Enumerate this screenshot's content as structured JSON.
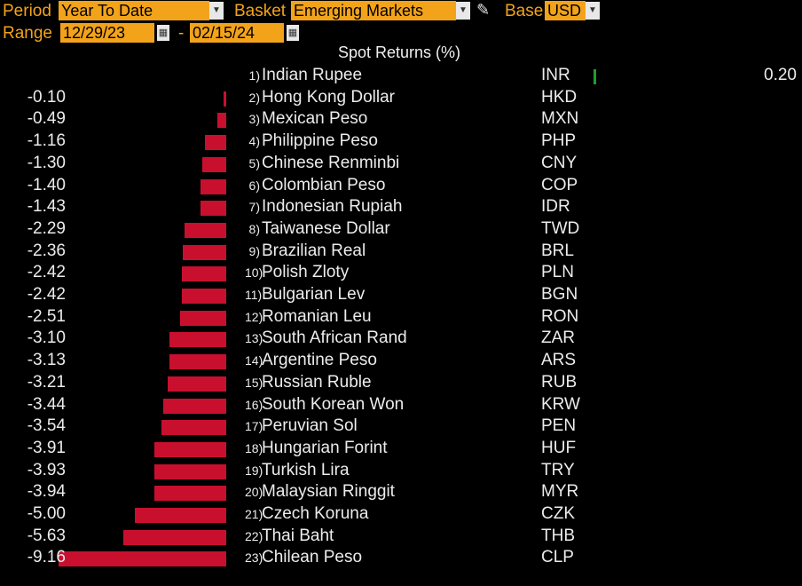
{
  "controls": {
    "period_label": "Period",
    "period_value": "Year To Date",
    "basket_label": "Basket",
    "basket_value": "Emerging Markets",
    "base_label": "Base",
    "base_value": "USD",
    "range_label": "Range",
    "start_date": "12/29/23",
    "date_separator": "-",
    "end_date": "02/15/24"
  },
  "colors": {
    "accent": "#f3a31a",
    "negative_bar": "#c8102e",
    "positive_bar": "#1e9e2e",
    "background": "#000000"
  },
  "chart_data": {
    "type": "bar",
    "title": "Spot Returns (%)",
    "rows": [
      {
        "rank": "1)",
        "name": "Indian Rupee",
        "code": "INR",
        "value": 0.2,
        "label": "0.20"
      },
      {
        "rank": "2)",
        "name": "Hong Kong Dollar",
        "code": "HKD",
        "value": -0.1,
        "label": "-0.10"
      },
      {
        "rank": "3)",
        "name": "Mexican Peso",
        "code": "MXN",
        "value": -0.49,
        "label": "-0.49"
      },
      {
        "rank": "4)",
        "name": "Philippine Peso",
        "code": "PHP",
        "value": -1.16,
        "label": "-1.16"
      },
      {
        "rank": "5)",
        "name": "Chinese Renminbi",
        "code": "CNY",
        "value": -1.3,
        "label": "-1.30"
      },
      {
        "rank": "6)",
        "name": "Colombian Peso",
        "code": "COP",
        "value": -1.4,
        "label": "-1.40"
      },
      {
        "rank": "7)",
        "name": "Indonesian Rupiah",
        "code": "IDR",
        "value": -1.43,
        "label": "-1.43"
      },
      {
        "rank": "8)",
        "name": "Taiwanese Dollar",
        "code": "TWD",
        "value": -2.29,
        "label": "-2.29"
      },
      {
        "rank": "9)",
        "name": "Brazilian Real",
        "code": "BRL",
        "value": -2.36,
        "label": "-2.36"
      },
      {
        "rank": "10)",
        "name": "Polish Zloty",
        "code": "PLN",
        "value": -2.42,
        "label": "-2.42"
      },
      {
        "rank": "11)",
        "name": "Bulgarian Lev",
        "code": "BGN",
        "value": -2.42,
        "label": "-2.42"
      },
      {
        "rank": "12)",
        "name": "Romanian Leu",
        "code": "RON",
        "value": -2.51,
        "label": "-2.51"
      },
      {
        "rank": "13)",
        "name": "South African Rand",
        "code": "ZAR",
        "value": -3.1,
        "label": "-3.10"
      },
      {
        "rank": "14)",
        "name": "Argentine Peso",
        "code": "ARS",
        "value": -3.13,
        "label": "-3.13"
      },
      {
        "rank": "15)",
        "name": "Russian Ruble",
        "code": "RUB",
        "value": -3.21,
        "label": "-3.21"
      },
      {
        "rank": "16)",
        "name": "South Korean Won",
        "code": "KRW",
        "value": -3.44,
        "label": "-3.44"
      },
      {
        "rank": "17)",
        "name": "Peruvian Sol",
        "code": "PEN",
        "value": -3.54,
        "label": "-3.54"
      },
      {
        "rank": "18)",
        "name": "Hungarian Forint",
        "code": "HUF",
        "value": -3.91,
        "label": "-3.91"
      },
      {
        "rank": "19)",
        "name": "Turkish Lira",
        "code": "TRY",
        "value": -3.93,
        "label": "-3.93"
      },
      {
        "rank": "20)",
        "name": "Malaysian Ringgit",
        "code": "MYR",
        "value": -3.94,
        "label": "-3.94"
      },
      {
        "rank": "21)",
        "name": "Czech Koruna",
        "code": "CZK",
        "value": -5.0,
        "label": "-5.00"
      },
      {
        "rank": "22)",
        "name": "Thai Baht",
        "code": "THB",
        "value": -5.63,
        "label": "-5.63"
      },
      {
        "rank": "23)",
        "name": "Chilean Peso",
        "code": "CLP",
        "value": -9.16,
        "label": "-9.16"
      }
    ]
  }
}
